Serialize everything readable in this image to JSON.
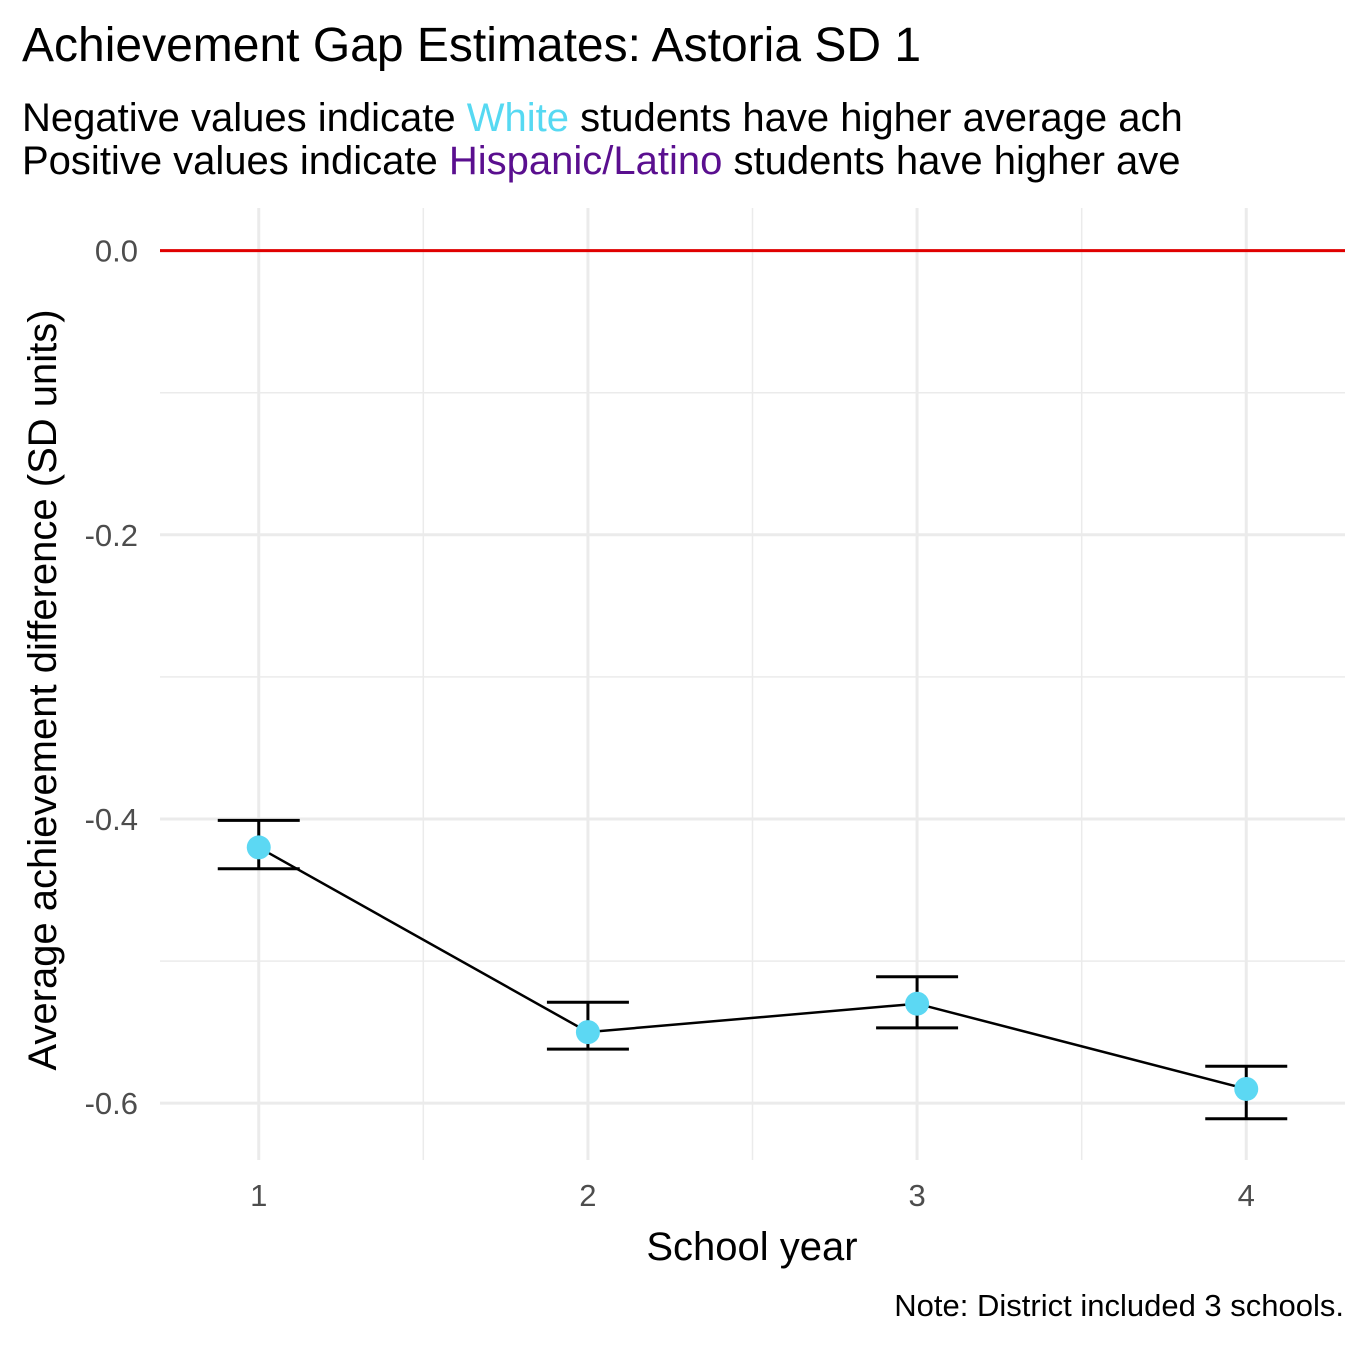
{
  "colors": {
    "white_group": "#56d9f2",
    "hispanic_group": "#5a0f8f",
    "zero_line": "#e00000",
    "points": "#5cd8f3",
    "grid": "#ebebeb"
  },
  "subtitle": {
    "line1_pre": "Negative values indicate ",
    "line1_group": "White",
    "line1_post": " students have higher average ach",
    "line2_pre": "Positive values indicate ",
    "line2_group": "Hispanic/Latino",
    "line2_post": " students have higher ave"
  },
  "caption": "Note: District included 3 schools.",
  "chart_data": {
    "type": "line",
    "title": "Achievement Gap Estimates: Astoria SD 1",
    "xlabel": "School year",
    "ylabel": "Average achievement difference (SD units)",
    "x": [
      1,
      2,
      3,
      4
    ],
    "values": [
      -0.42,
      -0.55,
      -0.53,
      -0.59
    ],
    "error_low": [
      -0.435,
      -0.562,
      -0.547,
      -0.611
    ],
    "error_high": [
      -0.401,
      -0.529,
      -0.511,
      -0.574
    ],
    "xlim": [
      0.7,
      4.3
    ],
    "ylim": [
      -0.64,
      0.03
    ],
    "x_ticks": [
      "1",
      "2",
      "3",
      "4"
    ],
    "y_ticks": [
      "0.0",
      "-0.2",
      "-0.4",
      "-0.6"
    ],
    "y_tick_values": [
      0.0,
      -0.2,
      -0.4,
      -0.6
    ],
    "reference_line": 0.0,
    "grid": true,
    "legend": "none"
  }
}
